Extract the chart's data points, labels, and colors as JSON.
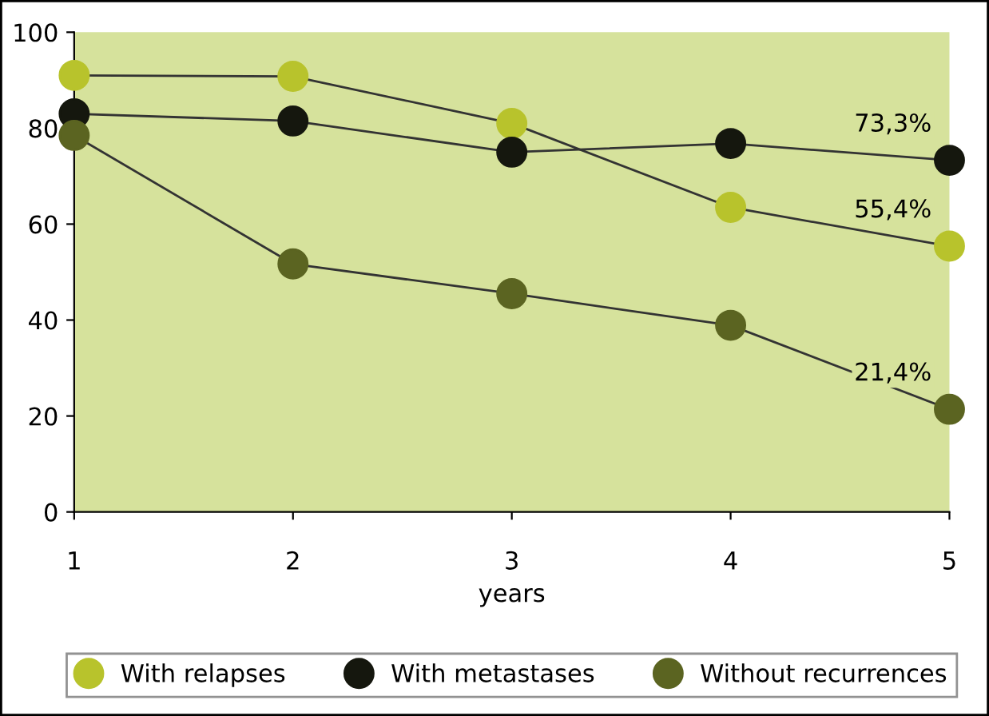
{
  "chart_data": {
    "type": "line",
    "xlabel": "years",
    "x": [
      1,
      2,
      3,
      4,
      5
    ],
    "series": [
      {
        "name": "With relapses",
        "color": "#b8c32c",
        "values": [
          91,
          90.8,
          81,
          63.5,
          55.4
        ],
        "value_labels": [
          null,
          null,
          null,
          null,
          "55,4%"
        ]
      },
      {
        "name": "With metastases",
        "color": "#15170e",
        "values": [
          83,
          81.5,
          75,
          76.8,
          73.3
        ],
        "value_labels": [
          null,
          null,
          null,
          null,
          "73,3%"
        ]
      },
      {
        "name": "Without recurrences",
        "color": "#5b6421",
        "values": [
          78.5,
          51.7,
          45.5,
          38.9,
          21.4
        ],
        "value_labels": [
          null,
          null,
          null,
          null,
          "21,4%"
        ]
      }
    ],
    "xlim": [
      1,
      5
    ],
    "xticks": [
      1,
      2,
      3,
      4,
      5
    ],
    "ylim": [
      0,
      100
    ],
    "yticks": [
      0,
      20,
      40,
      60,
      80,
      100
    ],
    "marker": "circle",
    "line_style": "solid",
    "grid": false,
    "legend": "bottom"
  }
}
